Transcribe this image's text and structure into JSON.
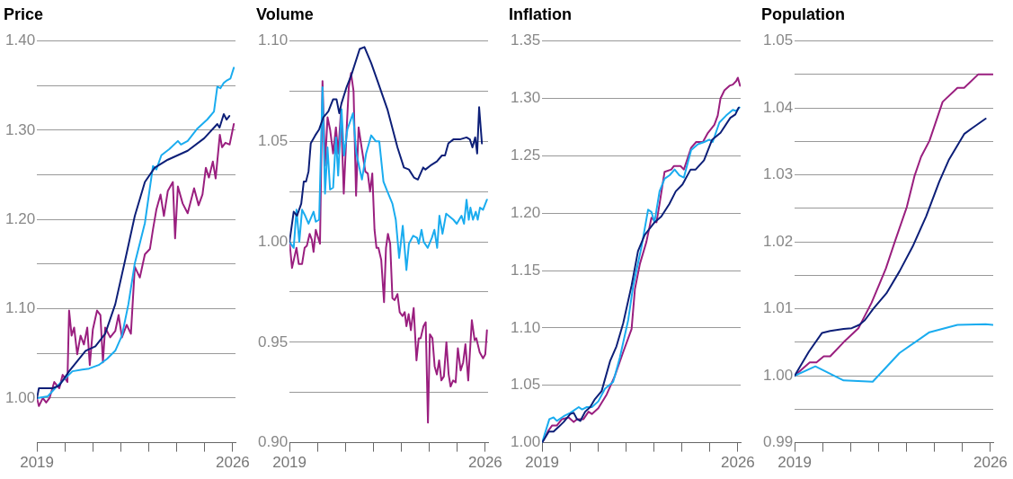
{
  "chart_data": [
    {
      "type": "line",
      "title": "Price",
      "grid": "y",
      "marker": "none",
      "xlim": [
        2019,
        2026.1
      ],
      "xticks": [
        {
          "value": 2019,
          "label": "2019"
        },
        {
          "value": 2020,
          "label": null
        },
        {
          "value": 2021,
          "label": null
        },
        {
          "value": 2022,
          "label": null
        },
        {
          "value": 2023,
          "label": null
        },
        {
          "value": 2024,
          "label": null
        },
        {
          "value": 2025,
          "label": null
        },
        {
          "value": 2026,
          "label": "2026"
        }
      ],
      "ylim": [
        0.95,
        1.4
      ],
      "yticks": [
        {
          "value": 1.0,
          "label": "1.00"
        },
        {
          "value": 1.05,
          "label": null
        },
        {
          "value": 1.1,
          "label": "1.10"
        },
        {
          "value": 1.15,
          "label": null
        },
        {
          "value": 1.2,
          "label": "1.20"
        },
        {
          "value": 1.25,
          "label": null
        },
        {
          "value": 1.3,
          "label": "1.30"
        },
        {
          "value": 1.35,
          "label": null
        },
        {
          "value": 1.4,
          "label": "1.40"
        }
      ],
      "series": [
        {
          "color": "#0d1f78",
          "x": [
            2019,
            2019.07,
            2019.56,
            2019.8,
            2020.15,
            2020.74,
            2021.09,
            2021.44,
            2021.8,
            2022.15,
            2022.5,
            2022.86,
            2023.21,
            2023.68,
            2024.39,
            2024.98,
            2025.45,
            2025.53,
            2025.68,
            2025.78,
            2025.88
          ],
          "values": [
            1.0,
            1.011,
            1.011,
            1.014,
            1.03,
            1.053,
            1.058,
            1.072,
            1.105,
            1.154,
            1.204,
            1.242,
            1.258,
            1.267,
            1.277,
            1.291,
            1.307,
            1.303,
            1.318,
            1.312,
            1.316
          ]
        },
        {
          "color": "#1aacef",
          "x": [
            2019,
            2019.39,
            2019.68,
            2020.27,
            2020.62,
            2020.86,
            2021.21,
            2021.51,
            2021.8,
            2022.04,
            2022.27,
            2022.5,
            2022.86,
            2023.15,
            2023.27,
            2023.45,
            2023.74,
            2024.04,
            2024.15,
            2024.39,
            2024.74,
            2025.09,
            2025.33,
            2025.45,
            2025.56,
            2025.68,
            2025.8,
            2025.92,
            2026.04
          ],
          "values": [
            1.0,
            1.002,
            1.012,
            1.03,
            1.032,
            1.033,
            1.037,
            1.044,
            1.053,
            1.07,
            1.105,
            1.151,
            1.196,
            1.26,
            1.256,
            1.272,
            1.279,
            1.288,
            1.284,
            1.288,
            1.302,
            1.312,
            1.321,
            1.349,
            1.347,
            1.353,
            1.356,
            1.358,
            1.37
          ]
        },
        {
          "color": "#9a1f7f",
          "x": [
            2019,
            2019.07,
            2019.21,
            2019.33,
            2019.45,
            2019.62,
            2019.8,
            2019.92,
            2020.09,
            2020.15,
            2020.24,
            2020.33,
            2020.44,
            2020.56,
            2020.68,
            2020.8,
            2020.89,
            2021.0,
            2021.15,
            2021.27,
            2021.36,
            2021.44,
            2021.62,
            2021.8,
            2021.92,
            2022.04,
            2022.21,
            2022.36,
            2022.5,
            2022.68,
            2022.86,
            2023.04,
            2023.15,
            2023.27,
            2023.42,
            2023.54,
            2023.68,
            2023.86,
            2023.94,
            2024.04,
            2024.21,
            2024.39,
            2024.62,
            2024.78,
            2024.92,
            2025.04,
            2025.15,
            2025.29,
            2025.39,
            2025.54,
            2025.62,
            2025.74,
            2025.89,
            2026.04
          ],
          "values": [
            1.0,
            0.991,
            1.0,
            0.995,
            1.0,
            1.018,
            1.011,
            1.026,
            1.018,
            1.098,
            1.07,
            1.079,
            1.049,
            1.07,
            1.06,
            1.079,
            1.037,
            1.077,
            1.098,
            1.093,
            1.04,
            1.079,
            1.068,
            1.075,
            1.093,
            1.068,
            1.082,
            1.072,
            1.147,
            1.135,
            1.161,
            1.167,
            1.189,
            1.211,
            1.228,
            1.204,
            1.232,
            1.242,
            1.179,
            1.237,
            1.218,
            1.207,
            1.235,
            1.216,
            1.228,
            1.258,
            1.247,
            1.265,
            1.246,
            1.295,
            1.281,
            1.286,
            1.284,
            1.307
          ]
        }
      ]
    },
    {
      "type": "line",
      "title": "Volume",
      "grid": "y",
      "marker": "none",
      "xlim": [
        2019,
        2026.1
      ],
      "xticks": [
        {
          "value": 2019,
          "label": "2019"
        },
        {
          "value": 2020,
          "label": null
        },
        {
          "value": 2021,
          "label": null
        },
        {
          "value": 2022,
          "label": null
        },
        {
          "value": 2023,
          "label": null
        },
        {
          "value": 2024,
          "label": null
        },
        {
          "value": 2025,
          "label": null
        },
        {
          "value": 2026,
          "label": "2026"
        }
      ],
      "ylim": [
        0.9,
        1.1
      ],
      "yticks": [
        {
          "value": 0.9,
          "label": "0.90"
        },
        {
          "value": 0.925,
          "label": null
        },
        {
          "value": 0.95,
          "label": "0.95"
        },
        {
          "value": 0.975,
          "label": null
        },
        {
          "value": 1.0,
          "label": "1.00"
        },
        {
          "value": 1.025,
          "label": null
        },
        {
          "value": 1.05,
          "label": "1.05"
        },
        {
          "value": 1.075,
          "label": null
        },
        {
          "value": 1.1,
          "label": "1.10"
        }
      ],
      "series": [
        {
          "color": "#0d1f78",
          "x": [
            2019,
            2019.15,
            2019.27,
            2019.42,
            2019.51,
            2019.59,
            2019.68,
            2019.76,
            2019.92,
            2020.06,
            2020.21,
            2020.39,
            2020.56,
            2020.68,
            2020.78,
            2020.86,
            2021.04,
            2021.21,
            2021.51,
            2021.68,
            2021.92,
            2022.15,
            2022.5,
            2022.86,
            2023.09,
            2023.27,
            2023.45,
            2023.59,
            2023.78,
            2023.86,
            2024.04,
            2024.27,
            2024.45,
            2024.56,
            2024.68,
            2024.86,
            2025.09,
            2025.33,
            2025.45,
            2025.54,
            2025.64,
            2025.71,
            2025.78,
            2025.88
          ],
          "values": [
            1.0,
            1.015,
            1.013,
            1.019,
            1.03,
            1.03,
            1.035,
            1.049,
            1.053,
            1.056,
            1.062,
            1.065,
            1.071,
            1.071,
            1.064,
            1.069,
            1.077,
            1.083,
            1.096,
            1.097,
            1.089,
            1.08,
            1.066,
            1.047,
            1.037,
            1.036,
            1.032,
            1.031,
            1.037,
            1.036,
            1.038,
            1.04,
            1.043,
            1.043,
            1.049,
            1.051,
            1.051,
            1.052,
            1.051,
            1.047,
            1.052,
            1.044,
            1.067,
            1.049
          ]
        },
        {
          "color": "#1aacef",
          "x": [
            2019,
            2019.15,
            2019.25,
            2019.35,
            2019.45,
            2019.56,
            2019.68,
            2019.86,
            2019.94,
            2020.06,
            2020.18,
            2020.27,
            2020.36,
            2020.45,
            2020.56,
            2020.66,
            2020.74,
            2020.86,
            2020.95,
            2021.07,
            2021.27,
            2021.39,
            2021.59,
            2021.74,
            2021.92,
            2022.09,
            2022.21,
            2022.36,
            2022.5,
            2022.68,
            2022.8,
            2022.92,
            2023.05,
            2023.18,
            2023.27,
            2023.42,
            2023.56,
            2023.62,
            2023.72,
            2023.8,
            2023.94,
            2024.09,
            2024.18,
            2024.28,
            2024.36,
            2024.47,
            2024.6,
            2024.86,
            2024.98,
            2025.15,
            2025.24,
            2025.33,
            2025.41,
            2025.47,
            2025.56,
            2025.66,
            2025.73,
            2025.81,
            2025.92,
            2026.06
          ],
          "values": [
            1.0,
            0.997,
            1.016,
            1.0,
            1.016,
            1.013,
            1.009,
            1.015,
            1.01,
            1.011,
            1.077,
            1.024,
            1.047,
            1.026,
            1.027,
            1.052,
            1.033,
            1.066,
            1.043,
            1.056,
            1.064,
            1.044,
            1.031,
            1.044,
            1.053,
            1.05,
            1.05,
            1.03,
            1.025,
            1.019,
            1.011,
            0.992,
            1.008,
            0.986,
            0.999,
            1.003,
            1.002,
            0.999,
            1.006,
            1.0,
            0.997,
            1.002,
            1.006,
            0.997,
            1.013,
            1.004,
            1.014,
            1.011,
            1.009,
            1.013,
            1.009,
            1.021,
            1.011,
            1.017,
            1.011,
            1.015,
            1.011,
            1.017,
            1.016,
            1.021
          ]
        },
        {
          "color": "#9a1f7f",
          "x": [
            2019,
            2019.09,
            2019.25,
            2019.33,
            2019.45,
            2019.54,
            2019.62,
            2019.72,
            2019.8,
            2019.86,
            2019.94,
            2020.09,
            2020.18,
            2020.27,
            2020.36,
            2020.45,
            2020.56,
            2020.66,
            2020.74,
            2020.84,
            2020.94,
            2021.05,
            2021.12,
            2021.2,
            2021.29,
            2021.38,
            2021.47,
            2021.59,
            2021.71,
            2021.8,
            2021.88,
            2021.96,
            2022.04,
            2022.11,
            2022.18,
            2022.28,
            2022.38,
            2022.45,
            2022.52,
            2022.6,
            2022.68,
            2022.76,
            2022.86,
            2022.94,
            2023.04,
            2023.12,
            2023.18,
            2023.26,
            2023.34,
            2023.44,
            2023.54,
            2023.62,
            2023.69,
            2023.79,
            2023.87,
            2023.95,
            2024.02,
            2024.11,
            2024.19,
            2024.27,
            2024.35,
            2024.43,
            2024.52,
            2024.61,
            2024.69,
            2024.76,
            2024.85,
            2024.94,
            2025.02,
            2025.12,
            2025.21,
            2025.29,
            2025.39,
            2025.52,
            2025.62,
            2025.68,
            2025.8,
            2025.92,
            2026.0,
            2026.06
          ],
          "values": [
            1.0,
            0.987,
            0.997,
            0.989,
            0.989,
            0.997,
            0.998,
            1.004,
            1.001,
            0.995,
            1.006,
            0.999,
            1.08,
            1.038,
            1.062,
            1.056,
            1.044,
            1.057,
            1.044,
            1.065,
            1.024,
            1.058,
            1.077,
            1.084,
            1.075,
            1.023,
            1.057,
            1.046,
            1.035,
            1.034,
            1.025,
            1.034,
            1.006,
            0.997,
            0.997,
            0.991,
            0.97,
            0.997,
            1.004,
            0.999,
            0.972,
            0.971,
            0.974,
            0.965,
            0.963,
            0.965,
            0.958,
            0.964,
            0.956,
            0.967,
            0.941,
            0.952,
            0.952,
            0.958,
            0.96,
            0.91,
            0.954,
            0.952,
            0.938,
            0.934,
            0.941,
            0.931,
            0.933,
            0.95,
            0.934,
            0.928,
            0.931,
            0.93,
            0.947,
            0.936,
            0.94,
            0.949,
            0.931,
            0.961,
            0.951,
            0.952,
            0.945,
            0.942,
            0.944,
            0.956
          ]
        }
      ]
    },
    {
      "type": "line",
      "title": "Inflation",
      "grid": "y",
      "marker": "none",
      "xlim": [
        2019,
        2026.1
      ],
      "xticks": [
        {
          "value": 2019,
          "label": "2019"
        },
        {
          "value": 2020,
          "label": null
        },
        {
          "value": 2021,
          "label": null
        },
        {
          "value": 2022,
          "label": null
        },
        {
          "value": 2023,
          "label": null
        },
        {
          "value": 2024,
          "label": null
        },
        {
          "value": 2025,
          "label": null
        },
        {
          "value": 2026,
          "label": "2026"
        }
      ],
      "ylim": [
        1.0,
        1.35
      ],
      "yticks": [
        {
          "value": 1.0,
          "label": "1.00"
        },
        {
          "value": 1.05,
          "label": "1.05"
        },
        {
          "value": 1.1,
          "label": "1.10"
        },
        {
          "value": 1.15,
          "label": "1.15"
        },
        {
          "value": 1.2,
          "label": "1.20"
        },
        {
          "value": 1.25,
          "label": "1.25"
        },
        {
          "value": 1.3,
          "label": "1.30"
        },
        {
          "value": 1.35,
          "label": "1.35"
        }
      ],
      "series": [
        {
          "color": "#0d1f78",
          "x": [
            2019,
            2019.24,
            2019.41,
            2019.59,
            2019.77,
            2020.01,
            2020.13,
            2020.25,
            2020.37,
            2020.54,
            2020.72,
            2020.89,
            2021.13,
            2021.43,
            2021.66,
            2021.9,
            2022.2,
            2022.43,
            2022.67,
            2023.02,
            2023.26,
            2023.55,
            2023.78,
            2024.02,
            2024.31,
            2024.49,
            2024.79,
            2025.08,
            2025.38,
            2025.73,
            2025.91,
            2026.03
          ],
          "values": [
            1.0,
            1.0096,
            1.0096,
            1.0137,
            1.018,
            1.025,
            1.026,
            1.0205,
            1.019,
            1.027,
            1.031,
            1.038,
            1.045,
            1.071,
            1.084,
            1.104,
            1.137,
            1.167,
            1.181,
            1.192,
            1.197,
            1.208,
            1.219,
            1.225,
            1.238,
            1.238,
            1.246,
            1.264,
            1.27,
            1.283,
            1.286,
            1.292
          ]
        },
        {
          "color": "#1aacef",
          "x": [
            2019,
            2019.26,
            2019.41,
            2019.53,
            2019.77,
            2020.01,
            2020.31,
            2020.43,
            2020.6,
            2020.78,
            2021.01,
            2021.25,
            2021.54,
            2021.78,
            2022.08,
            2022.26,
            2022.55,
            2022.79,
            2022.91,
            2023.02,
            2023.2,
            2023.38,
            2023.56,
            2023.74,
            2023.91,
            2024.07,
            2024.33,
            2024.57,
            2024.8,
            2024.98,
            2025.1,
            2025.34,
            2025.58,
            2025.82,
            2025.94,
            2026.06
          ],
          "values": [
            1.0,
            1.0205,
            1.022,
            1.019,
            1.023,
            1.026,
            1.031,
            1.029,
            1.031,
            1.031,
            1.036,
            1.047,
            1.053,
            1.074,
            1.107,
            1.137,
            1.17,
            1.203,
            1.201,
            1.192,
            1.219,
            1.23,
            1.233,
            1.238,
            1.233,
            1.231,
            1.255,
            1.26,
            1.262,
            1.264,
            1.262,
            1.279,
            1.285,
            1.29,
            1.289,
            1.292
          ]
        },
        {
          "color": "#9a1f7f",
          "x": [
            2019,
            2019.24,
            2019.36,
            2019.53,
            2019.71,
            2019.95,
            2020.13,
            2020.25,
            2020.48,
            2020.66,
            2020.78,
            2021.01,
            2021.31,
            2021.6,
            2021.9,
            2022.2,
            2022.32,
            2022.5,
            2022.73,
            2022.91,
            2023.09,
            2023.2,
            2023.38,
            2023.62,
            2023.71,
            2023.95,
            2024.07,
            2024.33,
            2024.51,
            2024.75,
            2024.93,
            2025.16,
            2025.28,
            2025.38,
            2025.52,
            2025.7,
            2025.82,
            2025.94,
            2026.0,
            2026.08
          ],
          "values": [
            1.0,
            1.011,
            1.015,
            1.015,
            1.0205,
            1.022,
            1.018,
            1.0205,
            1.0205,
            1.027,
            1.025,
            1.03,
            1.042,
            1.058,
            1.079,
            1.099,
            1.134,
            1.156,
            1.175,
            1.196,
            1.192,
            1.208,
            1.236,
            1.238,
            1.241,
            1.241,
            1.238,
            1.257,
            1.262,
            1.262,
            1.27,
            1.277,
            1.285,
            1.3,
            1.307,
            1.311,
            1.312,
            1.315,
            1.318,
            1.311
          ]
        }
      ]
    },
    {
      "type": "line",
      "title": "Population",
      "grid": "y",
      "marker": "none",
      "xlim": [
        2019,
        2026.1
      ],
      "xticks": [
        {
          "value": 2019,
          "label": "2019"
        },
        {
          "value": 2020,
          "label": null
        },
        {
          "value": 2021,
          "label": null
        },
        {
          "value": 2022,
          "label": null
        },
        {
          "value": 2023,
          "label": null
        },
        {
          "value": 2024,
          "label": null
        },
        {
          "value": 2025,
          "label": null
        },
        {
          "value": 2026,
          "label": "2026"
        }
      ],
      "ylim": [
        0.99,
        1.05
      ],
      "yticks": [
        {
          "value": 0.99,
          "label": "0.99"
        },
        {
          "value": 0.995,
          "label": null
        },
        {
          "value": 1.0,
          "label": "1.00"
        },
        {
          "value": 1.005,
          "label": null
        },
        {
          "value": 1.01,
          "label": "1.01"
        },
        {
          "value": 1.015,
          "label": null
        },
        {
          "value": 1.02,
          "label": "1.02"
        },
        {
          "value": 1.025,
          "label": null
        },
        {
          "value": 1.03,
          "label": "1.03"
        },
        {
          "value": 1.035,
          "label": null
        },
        {
          "value": 1.04,
          "label": "1.04"
        },
        {
          "value": 1.045,
          "label": null
        },
        {
          "value": 1.05,
          "label": "1.05"
        }
      ],
      "series": [
        {
          "color": "#0d1f78",
          "x": [
            2019,
            2019.51,
            2019.98,
            2020.27,
            2020.75,
            2021.04,
            2021.31,
            2021.51,
            2021.81,
            2022.28,
            2022.75,
            2023.22,
            2023.7,
            2024.17,
            2024.52,
            2025.06,
            2025.35,
            2025.83
          ],
          "values": [
            1.0,
            1.0036,
            1.0064,
            1.0067,
            1.007,
            1.0071,
            1.0076,
            1.0083,
            1.01,
            1.0123,
            1.0156,
            1.0193,
            1.0238,
            1.029,
            1.0323,
            1.0361,
            1.037,
            1.0384
          ]
        },
        {
          "color": "#1aacef",
          "x": [
            2019,
            2019.74,
            2020.75,
            2021.79,
            2022.75,
            2023.82,
            2024.82,
            2025.83,
            2026.08
          ],
          "values": [
            1.0,
            1.0014,
            0.9993,
            0.9991,
            1.0034,
            1.0065,
            1.0076,
            1.0077,
            1.0076
          ]
        },
        {
          "color": "#9a1f7f",
          "x": [
            2019,
            2019.54,
            2019.78,
            2020.04,
            2020.27,
            2020.75,
            2021.28,
            2021.75,
            2022.05,
            2022.26,
            2022.58,
            2023.01,
            2023.29,
            2023.52,
            2023.82,
            2024.29,
            2024.82,
            2025.06,
            2025.56,
            2026.08
          ],
          "values": [
            1.0,
            1.002,
            1.002,
            1.0029,
            1.0029,
            1.005,
            1.0071,
            1.0109,
            1.0139,
            1.016,
            1.02,
            1.0252,
            1.0299,
            1.0327,
            1.0351,
            1.0409,
            1.043,
            1.043,
            1.045,
            1.045
          ]
        }
      ]
    }
  ]
}
